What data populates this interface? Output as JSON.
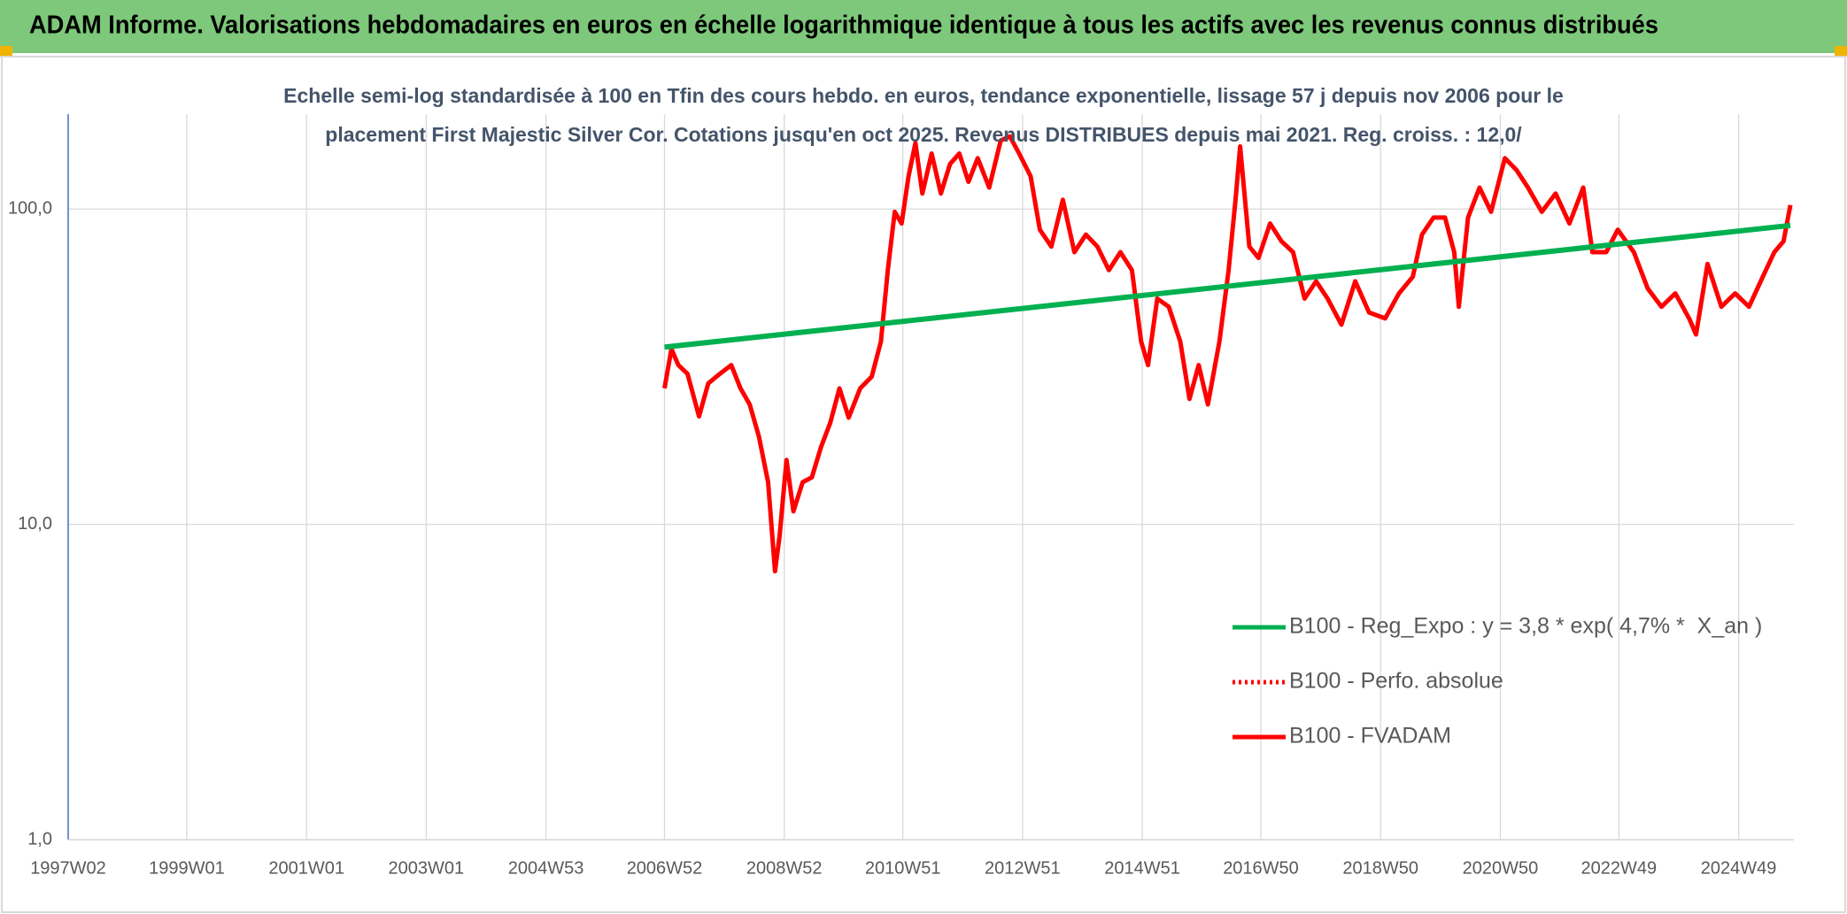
{
  "chart_data": {
    "type": "line",
    "title": "ADAM Informe. Valorisations hebdomadaires en euros en échelle logarithmique identique à tous les actifs avec les revenus connus distribués",
    "subtitle": "Echelle semi-log standardisée à 100 en Tfin des cours hebdo. en euros, tendance exponentielle, lissage 57 j depuis nov 2006 pour le placement First Majestic Silver Cor. Cotations jusqu'en oct 2025. Revenus DISTRIBUES depuis mai 2021. Reg. croiss. : 12,0/",
    "log_scale": true,
    "grid": true,
    "legend_position": "right",
    "xlim": [
      "1997W02",
      "2025W45"
    ],
    "xticks": [
      "1997W02",
      "1999W01",
      "2001W01",
      "2003W01",
      "2004W53",
      "2006W52",
      "2008W52",
      "2010W51",
      "2012W51",
      "2014W51",
      "2016W50",
      "2018W50",
      "2020W50",
      "2022W49",
      "2024W49"
    ],
    "ylim": [
      1,
      200
    ],
    "yticks": [
      {
        "value": 1,
        "label": "1,0"
      },
      {
        "value": 10,
        "label": "10,0"
      },
      {
        "value": 100,
        "label": "100,0"
      }
    ],
    "series": [
      {
        "name": "B100 - Reg_Expo : y = 3,8 * exp( 4,7% *  X_an )",
        "color": "#00b050",
        "style": "solid",
        "x": [
          "2006W52",
          "2025W42"
        ],
        "values": [
          36.5,
          88.7
        ]
      },
      {
        "name": "B100 - Perfo. absolue",
        "color": "#ff0000",
        "style": "dotted",
        "x": [],
        "values": []
      },
      {
        "name": "B100 - FVADAM",
        "color": "#ff0000",
        "style": "solid",
        "x": [
          "2006W52",
          "2007W06",
          "2007W12",
          "2007W20",
          "2007W30",
          "2007W38",
          "2007W48",
          "2008W06",
          "2008W14",
          "2008W22",
          "2008W30",
          "2008W38",
          "2008W44",
          "2008W48",
          "2009W02",
          "2009W08",
          "2009W16",
          "2009W24",
          "2009W32",
          "2009W40",
          "2009W48",
          "2010W04",
          "2010W14",
          "2010W24",
          "2010W32",
          "2010W38",
          "2010W44",
          "2010W50",
          "2011W04",
          "2011W10",
          "2011W16",
          "2011W24",
          "2011W32",
          "2011W40",
          "2011W48",
          "2012W04",
          "2012W12",
          "2012W22",
          "2012W32",
          "2012W40",
          "2012W48",
          "2013W06",
          "2013W14",
          "2013W24",
          "2013W34",
          "2013W44",
          "2014W02",
          "2014W12",
          "2014W22",
          "2014W32",
          "2014W42",
          "2014W50",
          "2015W04",
          "2015W12",
          "2015W22",
          "2015W32",
          "2015W40",
          "2015W48",
          "2016W04",
          "2016W14",
          "2016W22",
          "2016W28",
          "2016W32",
          "2016W40",
          "2016W48",
          "2017W06",
          "2017W16",
          "2017W26",
          "2017W36",
          "2017W46",
          "2018W04",
          "2018W16",
          "2018W28",
          "2018W40",
          "2019W02",
          "2019W14",
          "2019W26",
          "2019W34",
          "2019W44",
          "2020W02",
          "2020W10",
          "2020W14",
          "2020W22",
          "2020W32",
          "2020W42",
          "2021W02",
          "2021W12",
          "2021W22",
          "2021W34",
          "2021W46",
          "2022W06",
          "2022W18",
          "2022W26",
          "2022W38",
          "2022W48",
          "2023W10",
          "2023W22",
          "2023W34",
          "2023W46",
          "2024W06",
          "2024W12",
          "2024W22",
          "2024W34",
          "2024W46",
          "2025W06",
          "2025W18",
          "2025W28",
          "2025W36",
          "2025W42"
        ],
        "values": [
          27,
          36,
          32,
          30,
          22,
          28,
          30,
          32,
          27,
          24,
          19,
          13.6,
          7.1,
          9.2,
          16,
          11,
          13.6,
          14.1,
          17.6,
          21,
          27,
          21.8,
          27,
          29.4,
          38,
          64,
          98,
          90,
          127,
          162,
          112,
          150,
          112,
          139,
          150,
          122,
          145,
          117,
          165,
          170,
          150,
          127,
          86,
          76,
          107,
          73,
          83,
          76,
          64,
          73,
          64,
          38,
          32,
          52,
          49,
          38,
          25,
          32,
          24,
          38,
          64,
          107,
          158,
          76,
          70,
          90,
          79,
          73,
          52,
          59,
          52,
          43,
          59,
          47,
          45,
          54,
          61,
          83,
          94,
          94,
          73,
          49,
          94,
          117,
          98,
          145,
          133,
          117,
          98,
          112,
          90,
          117,
          73,
          73,
          86,
          73,
          56,
          49,
          54,
          45,
          40,
          67,
          49,
          54,
          49,
          61,
          73,
          79,
          103
        ]
      }
    ]
  }
}
